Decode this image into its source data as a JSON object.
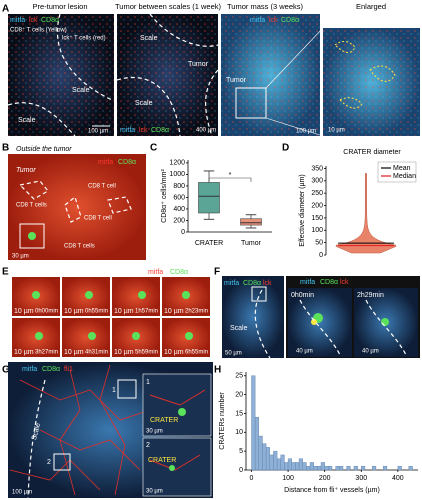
{
  "panel_labels": [
    "A",
    "B",
    "C",
    "D",
    "E",
    "F",
    "G",
    "H"
  ],
  "panel_a": [
    {
      "title": "Pre-tumor lesion",
      "channels": [
        "mitfa",
        "lck",
        "CD8α"
      ],
      "notes": [
        "CD8⁺ T cells (Yellow)",
        "lck⁺ T cells (red)"
      ],
      "regions": [
        "Scale",
        "Scale"
      ],
      "scale_bar": "100 µm"
    },
    {
      "title": "Tumor between scales (1 week)",
      "channels": [
        "mitfa",
        "lck",
        "CD8α"
      ],
      "regions": [
        "Scale",
        "Tumor",
        "Scale"
      ],
      "scale_bar": "400 µm"
    },
    {
      "title": "Tumor mass (3 weeks)",
      "channels": [
        "mitfa",
        "lck",
        "CD8α"
      ],
      "regions": [
        "Tumor"
      ],
      "scale_bar": "100 µm"
    },
    {
      "title": "Enlarged",
      "scale_bar": "10 µm"
    }
  ],
  "panel_b": {
    "title": "Outside the tumor",
    "channels": [
      "mitfa",
      "CD8α"
    ],
    "region": "Tumor",
    "cells": [
      "CD8 T cells",
      "CD8 T cell",
      "CD8 T cell",
      "CD8 T cells"
    ],
    "scale_bar": "30 µm"
  },
  "panel_e": {
    "channels": [
      "mitfa",
      "CD8α"
    ],
    "times": [
      "0h00min",
      "0h55min",
      "1h57min",
      "2h23min",
      "3h27min",
      "4h31min",
      "5h59min",
      "6h55min"
    ],
    "scale_bar": "10 µm"
  },
  "panel_f": {
    "channels": [
      "mitfa",
      "CD8α",
      "lck"
    ],
    "region": "Scale",
    "scale_bar": "50 µm",
    "inset_channels": [
      "mitfa",
      "CD8α",
      "lck"
    ],
    "inset_times": [
      "0h0min",
      "2h29min"
    ],
    "inset_scale_bar": "40 µm"
  },
  "panel_g": {
    "channels": [
      "mitfa",
      "CD8α",
      "fli1"
    ],
    "region": "Scale",
    "scale_bar": "100 µm",
    "insets": [
      {
        "label": "1",
        "text": "CRATER",
        "scale_bar": "30 µm"
      },
      {
        "label": "2",
        "text": "CRATER",
        "scale_bar": "30 µm"
      }
    ]
  },
  "chart_data": [
    {
      "type": "box",
      "ylabel": "CD8α⁺ cells/mm²",
      "categories": [
        "CRATER",
        "Tumor"
      ],
      "boxes": [
        {
          "whislo": 220,
          "q1": 330,
          "median": 620,
          "q3": 860,
          "whishi": 1060,
          "color": "#5ba596"
        },
        {
          "whislo": 70,
          "q1": 120,
          "median": 160,
          "q3": 230,
          "whishi": 300,
          "color": "#e8917a"
        }
      ],
      "ylim": [
        0,
        1250
      ],
      "yticks": [
        0,
        200,
        400,
        600,
        800,
        1000,
        1200
      ],
      "annotation": "*"
    },
    {
      "type": "violin",
      "title": "CRATER diameter",
      "ylabel": "Effective diameter (µm)",
      "range": [
        8,
        330
      ],
      "mean": 48,
      "median": 38,
      "color": "#e8836a",
      "series": [
        {
          "name": "Mean",
          "color": "#000000"
        },
        {
          "name": "Median",
          "color": "#e41a1c"
        }
      ],
      "ylim": [
        0,
        360
      ],
      "yticks": [
        0,
        50,
        100,
        150,
        200,
        250,
        300,
        350
      ]
    },
    {
      "type": "histogram",
      "ylabel": "CRATERs number",
      "xlabel": "Distance from fli⁺ vessels (µm)",
      "color": "#8fb0d6",
      "bins": [
        0,
        10,
        20,
        30,
        40,
        50,
        60,
        70,
        80,
        90,
        100,
        110,
        120,
        130,
        140,
        150,
        160,
        170,
        180,
        190,
        200,
        210,
        220,
        230,
        240,
        250,
        260,
        270,
        280,
        290,
        300,
        310,
        320,
        330,
        340,
        350,
        360,
        370,
        380,
        390,
        400,
        410,
        420,
        430,
        440,
        450
      ],
      "counts": [
        25,
        14,
        9,
        7,
        6,
        4,
        5,
        3,
        4,
        2,
        3,
        2,
        2,
        3,
        2,
        1,
        2,
        1,
        1,
        2,
        1,
        1,
        0,
        1,
        1,
        0,
        1,
        0,
        1,
        0,
        1,
        0,
        0,
        1,
        0,
        0,
        1,
        0,
        0,
        0,
        1,
        0,
        0,
        1,
        0
      ],
      "xlim": [
        -15,
        455
      ],
      "ylim": [
        0,
        26
      ],
      "xticks": [
        0,
        100,
        200,
        300,
        400
      ],
      "yticks": [
        0,
        5,
        10,
        15,
        20,
        25
      ]
    }
  ]
}
